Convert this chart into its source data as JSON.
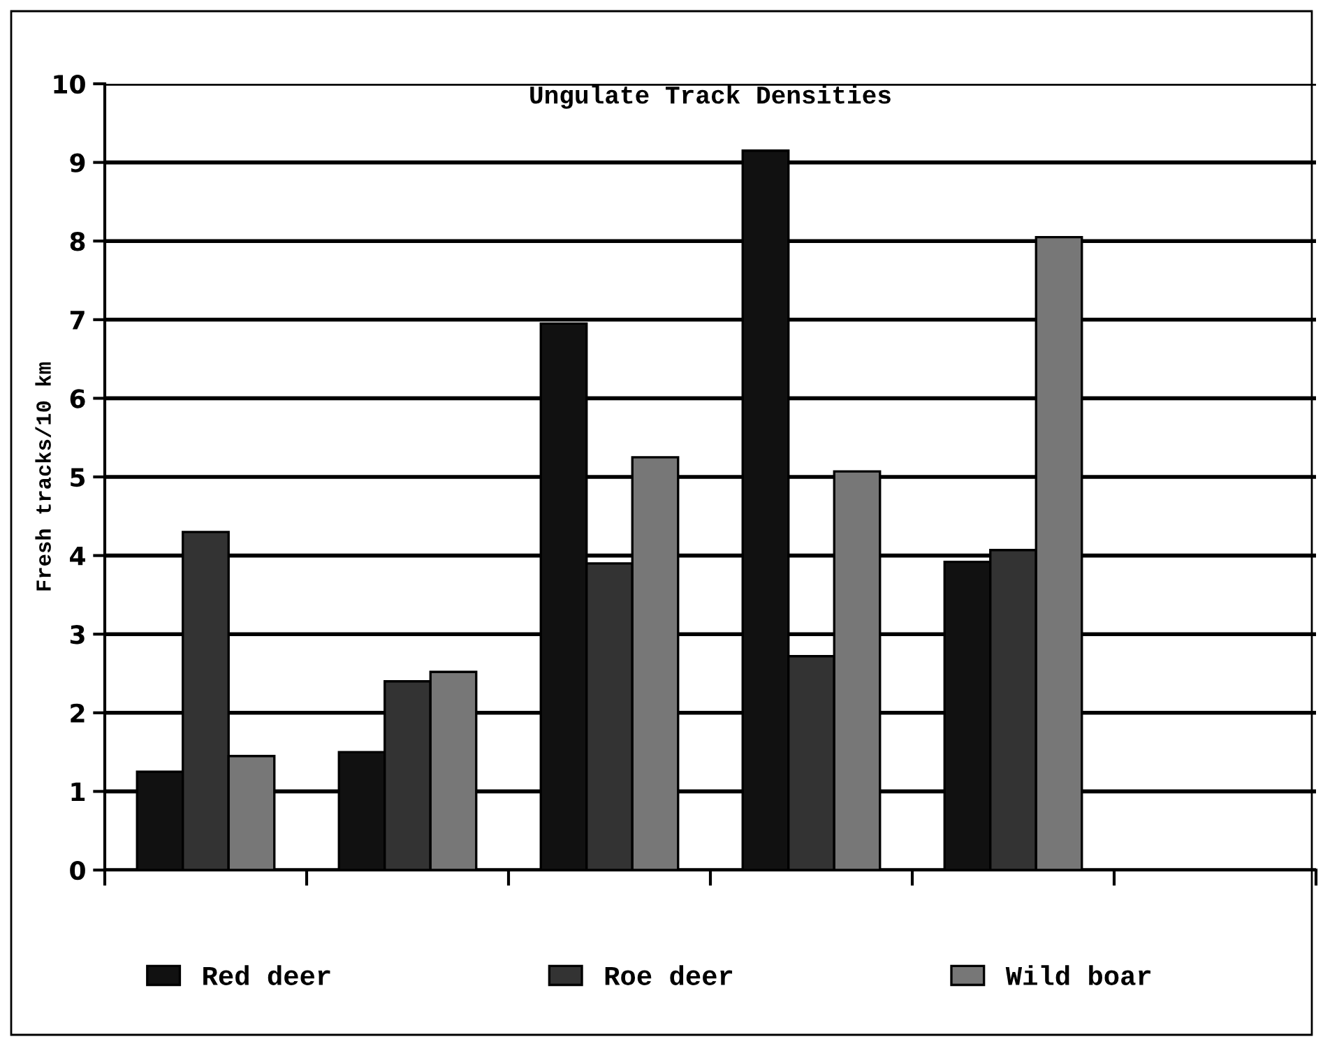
{
  "chart_data": {
    "type": "bar",
    "title": "Ungulate Track Densities",
    "ylabel": "Fresh tracks/10 km",
    "categories": [
      null,
      null,
      null,
      null,
      null,
      null
    ],
    "series": [
      {
        "name": "Red deer",
        "color": "#111111",
        "values": [
          1.25,
          1.5,
          6.95,
          9.15,
          3.92,
          null
        ]
      },
      {
        "name": "Roe deer",
        "color": "#333333",
        "values": [
          4.3,
          2.4,
          3.9,
          2.72,
          4.07,
          null
        ]
      },
      {
        "name": "Wild boar",
        "color": "#777777",
        "values": [
          1.45,
          2.52,
          5.25,
          5.07,
          8.05,
          null
        ]
      }
    ],
    "ylim": [
      0,
      10
    ],
    "yticks": [
      0,
      1,
      2,
      3,
      4,
      5,
      6,
      7,
      8,
      9,
      10
    ],
    "grid": "y",
    "legend": "bottom"
  }
}
